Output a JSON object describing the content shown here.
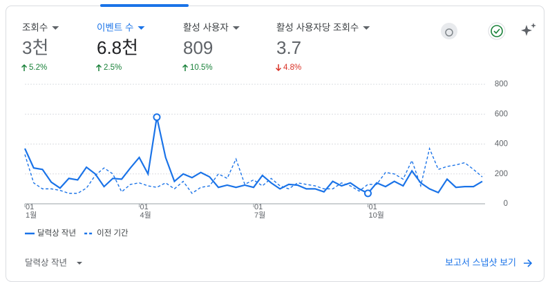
{
  "metrics": [
    {
      "label": "조회수",
      "value": "3천",
      "delta": "5.2%",
      "direction": "up",
      "selected": false
    },
    {
      "label": "이벤트 수",
      "value": "6.8천",
      "delta": "2.5%",
      "direction": "up",
      "selected": true
    },
    {
      "label": "활성 사용자",
      "value": "809",
      "delta": "10.5%",
      "direction": "up",
      "selected": false
    },
    {
      "label": "활성 사용자당 조회수",
      "value": "3.7",
      "delta": "4.8%",
      "direction": "down",
      "selected": false
    }
  ],
  "chart_data": {
    "type": "line",
    "categories": [
      "01",
      null,
      null,
      null,
      null,
      null,
      null,
      null,
      null,
      null,
      null,
      null,
      null,
      "01",
      null,
      null,
      null,
      null,
      null,
      null,
      null,
      null,
      null,
      null,
      null,
      null,
      "01",
      null,
      null,
      null,
      null,
      null,
      null,
      null,
      null,
      null,
      null,
      null,
      null,
      "01",
      null,
      null,
      null,
      null,
      null,
      null,
      null,
      null,
      null,
      null,
      null,
      null,
      null
    ],
    "category_months": [
      "1월",
      null,
      null,
      null,
      null,
      null,
      null,
      null,
      null,
      null,
      null,
      null,
      null,
      "4월",
      null,
      null,
      null,
      null,
      null,
      null,
      null,
      null,
      null,
      null,
      null,
      null,
      "7월",
      null,
      null,
      null,
      null,
      null,
      null,
      null,
      null,
      null,
      null,
      null,
      null,
      "10월",
      null,
      null,
      null,
      null,
      null,
      null,
      null,
      null,
      null,
      null,
      null,
      null,
      null
    ],
    "series": [
      {
        "name": "달력상 작년",
        "color": "#1a73e8",
        "dash": false,
        "values": [
          370,
          240,
          230,
          145,
          105,
          170,
          160,
          245,
          200,
          115,
          170,
          165,
          240,
          310,
          200,
          580,
          310,
          150,
          200,
          175,
          210,
          180,
          110,
          125,
          110,
          125,
          110,
          190,
          140,
          100,
          130,
          125,
          100,
          100,
          80,
          150,
          120,
          140,
          100,
          70,
          140,
          115,
          150,
          120,
          220,
          140,
          100,
          75,
          165,
          110,
          115,
          115,
          150
        ]
      },
      {
        "name": "이전 기간",
        "color": "#1a73e8",
        "dash": true,
        "values": [
          330,
          140,
          100,
          100,
          90,
          70,
          70,
          105,
          190,
          240,
          200,
          80,
          130,
          140,
          120,
          110,
          140,
          100,
          150,
          70,
          110,
          120,
          200,
          170,
          300,
          130,
          160,
          120,
          170,
          120,
          100,
          140,
          130,
          120,
          100,
          100,
          140,
          120,
          85,
          130,
          130,
          210,
          200,
          165,
          290,
          120,
          370,
          230,
          250,
          260,
          275,
          230,
          180
        ]
      }
    ],
    "ylim": [
      0,
      800
    ],
    "yticks": [
      0,
      200,
      400,
      600,
      800
    ],
    "grid": true,
    "legend": "bottom-left"
  },
  "footer": {
    "range": "달력상 작년",
    "link": "보고서 스냅샷 보기"
  }
}
